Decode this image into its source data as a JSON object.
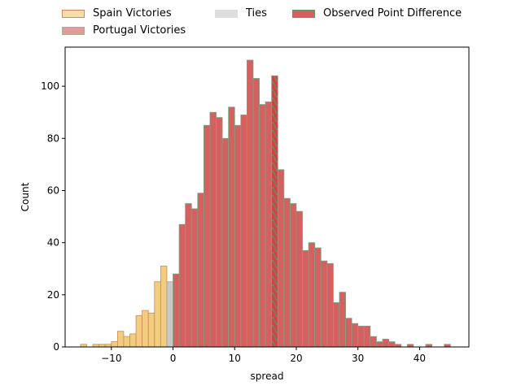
{
  "chart_data": {
    "type": "bar",
    "title": "",
    "xlabel": "spread",
    "ylabel": "Count",
    "xlim": [
      -17.5,
      48
    ],
    "ylim": [
      0,
      115
    ],
    "xticks": [
      -10,
      0,
      10,
      20,
      30,
      40
    ],
    "yticks": [
      0,
      20,
      40,
      60,
      80,
      100
    ],
    "bin_width": 1,
    "bins": [
      {
        "x": -15,
        "count": 1,
        "group": "spain"
      },
      {
        "x": -13,
        "count": 1,
        "group": "spain"
      },
      {
        "x": -12,
        "count": 1,
        "group": "spain"
      },
      {
        "x": -11,
        "count": 1,
        "group": "spain"
      },
      {
        "x": -10,
        "count": 2,
        "group": "spain"
      },
      {
        "x": -9,
        "count": 6,
        "group": "spain"
      },
      {
        "x": -8,
        "count": 4,
        "group": "spain"
      },
      {
        "x": -7,
        "count": 5,
        "group": "spain"
      },
      {
        "x": -6,
        "count": 12,
        "group": "spain"
      },
      {
        "x": -5,
        "count": 14,
        "group": "spain"
      },
      {
        "x": -4,
        "count": 13,
        "group": "spain"
      },
      {
        "x": -3,
        "count": 25,
        "group": "spain"
      },
      {
        "x": -2,
        "count": 31,
        "group": "spain"
      },
      {
        "x": -1,
        "count": 25,
        "group": "tie"
      },
      {
        "x": 0,
        "count": 28,
        "group": "portugal"
      },
      {
        "x": 1,
        "count": 47,
        "group": "portugal"
      },
      {
        "x": 2,
        "count": 55,
        "group": "portugal"
      },
      {
        "x": 3,
        "count": 53,
        "group": "portugal"
      },
      {
        "x": 4,
        "count": 59,
        "group": "portugal"
      },
      {
        "x": 5,
        "count": 85,
        "group": "portugal"
      },
      {
        "x": 6,
        "count": 90,
        "group": "portugal"
      },
      {
        "x": 7,
        "count": 88,
        "group": "portugal"
      },
      {
        "x": 8,
        "count": 80,
        "group": "portugal"
      },
      {
        "x": 9,
        "count": 92,
        "group": "portugal"
      },
      {
        "x": 10,
        "count": 85,
        "group": "portugal"
      },
      {
        "x": 11,
        "count": 89,
        "group": "portugal"
      },
      {
        "x": 12,
        "count": 110,
        "group": "portugal"
      },
      {
        "x": 13,
        "count": 103,
        "group": "portugal"
      },
      {
        "x": 14,
        "count": 93,
        "group": "portugal"
      },
      {
        "x": 15,
        "count": 94,
        "group": "portugal"
      },
      {
        "x": 16,
        "count": 104,
        "group": "observed"
      },
      {
        "x": 17,
        "count": 68,
        "group": "portugal"
      },
      {
        "x": 18,
        "count": 57,
        "group": "portugal"
      },
      {
        "x": 19,
        "count": 55,
        "group": "portugal"
      },
      {
        "x": 20,
        "count": 52,
        "group": "portugal"
      },
      {
        "x": 21,
        "count": 37,
        "group": "portugal"
      },
      {
        "x": 22,
        "count": 40,
        "group": "portugal"
      },
      {
        "x": 23,
        "count": 38,
        "group": "portugal"
      },
      {
        "x": 24,
        "count": 33,
        "group": "portugal"
      },
      {
        "x": 25,
        "count": 32,
        "group": "portugal"
      },
      {
        "x": 26,
        "count": 17,
        "group": "portugal"
      },
      {
        "x": 27,
        "count": 21,
        "group": "portugal"
      },
      {
        "x": 28,
        "count": 11,
        "group": "portugal"
      },
      {
        "x": 29,
        "count": 9,
        "group": "portugal"
      },
      {
        "x": 30,
        "count": 8,
        "group": "portugal"
      },
      {
        "x": 31,
        "count": 8,
        "group": "portugal"
      },
      {
        "x": 32,
        "count": 4,
        "group": "portugal"
      },
      {
        "x": 33,
        "count": 2,
        "group": "portugal"
      },
      {
        "x": 34,
        "count": 3,
        "group": "portugal"
      },
      {
        "x": 35,
        "count": 2,
        "group": "portugal"
      },
      {
        "x": 36,
        "count": 1,
        "group": "portugal"
      },
      {
        "x": 38,
        "count": 1,
        "group": "portugal"
      },
      {
        "x": 41,
        "count": 1,
        "group": "portugal"
      },
      {
        "x": 44,
        "count": 1,
        "group": "portugal"
      }
    ],
    "legend": {
      "placement": "top",
      "entries": [
        {
          "key": "spain",
          "label": "Spain Victories",
          "fill": "#f5dca8",
          "edge": "#d4875a"
        },
        {
          "key": "portugal",
          "label": "Portugal Victories",
          "fill": "#e39a9a",
          "edge": "#a2b48f"
        },
        {
          "key": "tie",
          "label": "Ties",
          "fill": "#dddddd",
          "edge": "#dddddd"
        },
        {
          "key": "observed",
          "label": "Observed Point Difference",
          "fill": "#d95f5f",
          "edge": "#5a9a6b"
        }
      ]
    },
    "colors": {
      "spain_bar": "#f2cd80",
      "spain_edge": "#c98a55",
      "portugal_bar": "#d46060",
      "portugal_edge": "#7aa384",
      "tie_bar": "#c8c8c8",
      "tie_edge": "#a0a0a0",
      "observed_bar": "#cc4444",
      "observed_hatch": "#5a9a6b"
    }
  }
}
